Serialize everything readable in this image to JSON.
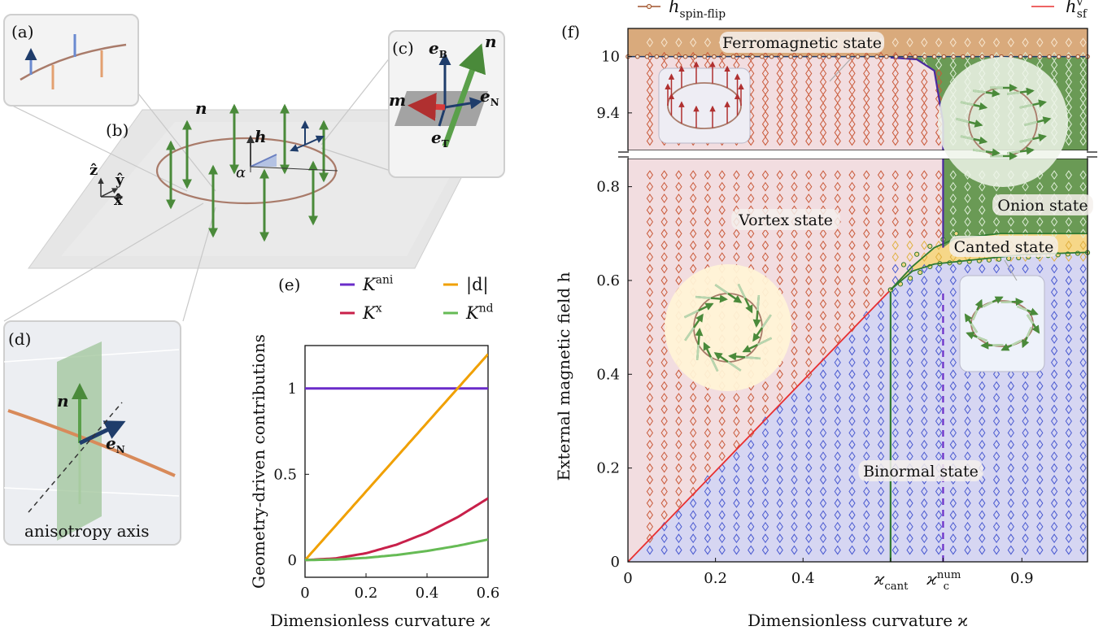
{
  "panels": {
    "a_label": "(a)",
    "b_label": "(b)",
    "c_label": "(c)",
    "d_label": "(d)",
    "e_label": "(e)",
    "f_label": "(f)"
  },
  "panel_b": {
    "n_label": "n",
    "h_label": "h",
    "alpha_label": "α",
    "z_label": "ẑ",
    "y_label": "ŷ",
    "x_label": "x̂"
  },
  "panel_c": {
    "eB": "e",
    "eB_sub": "B",
    "eN": "e",
    "eN_sub": "N",
    "eT": "e",
    "eT_sub": "T",
    "m": "m",
    "n": "n"
  },
  "panel_d": {
    "n": "n",
    "eN": "e",
    "eN_sub": "N",
    "caption": "anisotropy axis"
  },
  "colors": {
    "K_ani": "#6a2cc9",
    "d_abs": "#f0a000",
    "K_x": "#c8204a",
    "K_nd": "#66bb55",
    "vortex_bg": "#f2dde0",
    "binormal_bg": "#d6d6f2",
    "onion_bg": "#6a9a55",
    "canted_bg": "#f6d788",
    "ferro_bg": "#d9aa7c",
    "h_sf_line": "#e83030",
    "spin_flip_line": "#a0522d"
  },
  "chart_data": [
    {
      "type": "line",
      "title": "",
      "xlabel": "Dimensionless curvature ϰ",
      "ylabel": "Geometry-driven contributions",
      "xlim": [
        0,
        0.6
      ],
      "ylim": [
        -0.1,
        1.25
      ],
      "xticks": [
        "0",
        "0.2",
        "0.4",
        "0.6"
      ],
      "xtick_values": [
        0,
        0.2,
        0.4,
        0.6
      ],
      "yticks": [
        "0",
        "0.5",
        "1"
      ],
      "ytick_values": [
        0,
        0.5,
        1
      ],
      "x": [
        0,
        0.1,
        0.2,
        0.3,
        0.4,
        0.5,
        0.6
      ],
      "series": [
        {
          "name": "K",
          "sup": "ani",
          "color_key": "K_ani",
          "values": [
            1,
            1,
            1,
            1,
            1,
            1,
            1
          ]
        },
        {
          "name": "|d|",
          "sup": "",
          "color_key": "d_abs",
          "values": [
            0,
            0.2,
            0.4,
            0.6,
            0.8,
            1.0,
            1.2
          ]
        },
        {
          "name": "K",
          "sup": "x",
          "color_key": "K_x",
          "values": [
            0,
            0.01,
            0.04,
            0.09,
            0.16,
            0.25,
            0.36
          ]
        },
        {
          "name": "K",
          "sup": "nd",
          "color_key": "K_nd",
          "values": [
            0,
            0.0033,
            0.0133,
            0.03,
            0.0533,
            0.0833,
            0.12
          ]
        }
      ]
    },
    {
      "type": "area",
      "title": "",
      "xlabel": "Dimensionless curvature ϰ",
      "ylabel": "External magnetic field  h",
      "xlim": [
        0,
        1.05
      ],
      "ylim_lower": [
        0,
        0.86
      ],
      "ylim_upper": [
        9.0,
        10.3
      ],
      "xticks": [
        "0",
        "0.2",
        "0.4",
        "0.9"
      ],
      "xtick_values": [
        0,
        0.2,
        0.4,
        0.9
      ],
      "special_xticks": [
        {
          "label": "ϰ",
          "sub": "cant",
          "value": 0.6,
          "color": "#2f7a2f"
        },
        {
          "label": "ϰ",
          "sub": "c",
          "sup": "num",
          "value": 0.72,
          "color": "#6a2cc9"
        }
      ],
      "yticks_lower": [
        "0",
        "0.2",
        "0.4",
        "0.6",
        "0.8"
      ],
      "ytick_values_lower": [
        0,
        0.2,
        0.4,
        0.6,
        0.8
      ],
      "yticks_upper": [
        "9.4",
        "10"
      ],
      "ytick_values_upper": [
        9.4,
        10
      ],
      "legend": [
        {
          "name": "h",
          "sub": "spin-flip",
          "style": "line-marker",
          "color_key": "spin_flip_line"
        },
        {
          "name": "h",
          "sub": "sf",
          "sup": "v",
          "style": "line",
          "color_key": "h_sf_line"
        }
      ],
      "boundaries": {
        "h_sf": {
          "x": [
            0,
            0.6
          ],
          "y": [
            0,
            0.58
          ]
        },
        "binormal_cant_vertical": {
          "x": 0.6,
          "y": [
            0,
            0.58
          ]
        },
        "canted_lower": {
          "x": [
            0.6,
            0.65,
            0.7,
            0.8,
            0.9,
            1.05
          ],
          "y": [
            0.58,
            0.62,
            0.635,
            0.645,
            0.655,
            0.66
          ]
        },
        "canted_upper": {
          "x": [
            0.6,
            0.65,
            0.7,
            0.75,
            0.85,
            1.05
          ],
          "y": [
            0.58,
            0.63,
            0.67,
            0.69,
            0.7,
            0.7
          ]
        },
        "onion_vortex_vertical": {
          "x": 0.72,
          "y": [
            0.67,
            9.3
          ]
        },
        "kappa_c_num": 0.72,
        "ferro_line": 10.0,
        "onion_vortex_upper": {
          "x": [
            0.6,
            0.66,
            0.7,
            0.72
          ],
          "y": [
            9.99,
            9.97,
            9.85,
            9.3
          ]
        }
      },
      "state_labels": [
        "Ferromagnetic state",
        "Vortex state",
        "Onion state",
        "Canted state",
        "Binormal state"
      ]
    }
  ]
}
